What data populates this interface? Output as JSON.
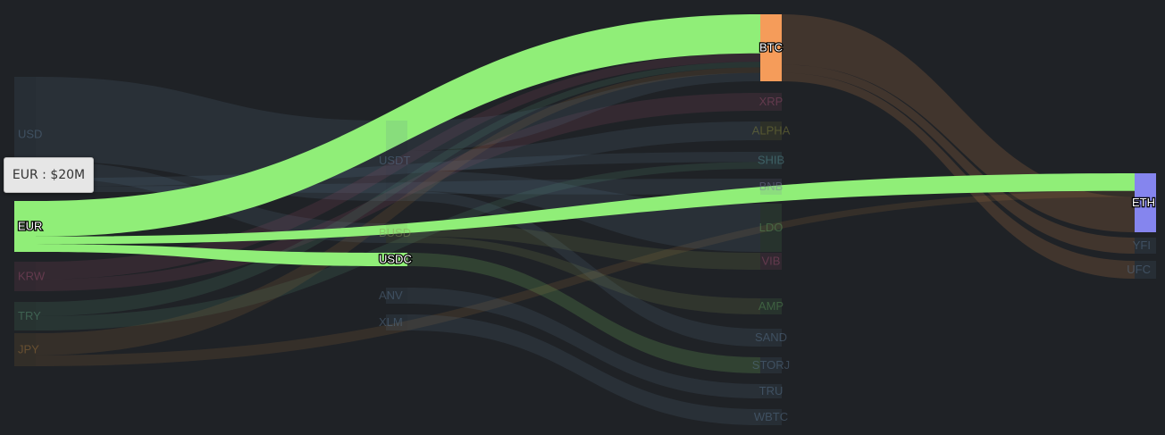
{
  "chart_data": {
    "type": "sankey",
    "highlighted_node": "EUR",
    "nodes": [
      {
        "id": "USD",
        "column": 0,
        "color": "#5d7a96"
      },
      {
        "id": "EUR",
        "column": 0,
        "color": "#90ee78"
      },
      {
        "id": "KRW",
        "column": 0,
        "color": "#a05070"
      },
      {
        "id": "TRY",
        "column": 0,
        "color": "#5a9a7a"
      },
      {
        "id": "JPY",
        "column": 0,
        "color": "#a8783c"
      },
      {
        "id": "USDT",
        "column": 1,
        "color": "#5d7a96"
      },
      {
        "id": "BUSD",
        "column": 1,
        "color": "#8a9a5a"
      },
      {
        "id": "USDC",
        "column": 1,
        "color": "#90ee78"
      },
      {
        "id": "ANV",
        "column": 1,
        "color": "#5d7a96"
      },
      {
        "id": "XLM",
        "column": 1,
        "color": "#5d7a96"
      },
      {
        "id": "BTC",
        "column": 2,
        "color": "#f59c5a"
      },
      {
        "id": "XRP",
        "column": 2,
        "color": "#a05070"
      },
      {
        "id": "ALPHA",
        "column": 2,
        "color": "#8a8a3c"
      },
      {
        "id": "SHIB",
        "column": 2,
        "color": "#5a9aa0"
      },
      {
        "id": "BNB",
        "column": 2,
        "color": "#7a7aa0"
      },
      {
        "id": "LDO",
        "column": 2,
        "color": "#5a9a5a"
      },
      {
        "id": "VIB",
        "column": 2,
        "color": "#a05070"
      },
      {
        "id": "AMP",
        "column": 2,
        "color": "#5a9a5a"
      },
      {
        "id": "SAND",
        "column": 2,
        "color": "#5d7a96"
      },
      {
        "id": "STORJ",
        "column": 2,
        "color": "#5d7a96"
      },
      {
        "id": "TRU",
        "column": 2,
        "color": "#5d7a96"
      },
      {
        "id": "WBTC",
        "column": 2,
        "color": "#5d7a96"
      },
      {
        "id": "ETH",
        "column": 3,
        "color": "#8585ee"
      },
      {
        "id": "YFI",
        "column": 3,
        "color": "#5d7a96"
      },
      {
        "id": "UFC",
        "column": 3,
        "color": "#5d7a96"
      }
    ],
    "links": [
      {
        "source": "EUR",
        "target": "BTC",
        "value": 14,
        "active": true
      },
      {
        "source": "EUR",
        "target": "ETH",
        "value": 3,
        "active": true
      },
      {
        "source": "EUR",
        "target": "USDC",
        "value": 3,
        "active": true
      },
      {
        "source": "USD",
        "target": "USDT",
        "value": 30,
        "active": false
      },
      {
        "source": "USD",
        "target": "BUSD",
        "value": 6,
        "active": false
      },
      {
        "source": "USD",
        "target": "SHIB",
        "value": 3,
        "active": false
      },
      {
        "source": "USD",
        "target": "BNB",
        "value": 2,
        "active": false
      },
      {
        "source": "KRW",
        "target": "BTC",
        "value": 3,
        "active": false
      },
      {
        "source": "KRW",
        "target": "XRP",
        "value": 2,
        "active": false
      },
      {
        "source": "TRY",
        "target": "BTC",
        "value": 2,
        "active": false
      },
      {
        "source": "TRY",
        "target": "SHIB",
        "value": 2,
        "active": false
      },
      {
        "source": "JPY",
        "target": "BTC",
        "value": 2,
        "active": false
      },
      {
        "source": "JPY",
        "target": "ETH",
        "value": 1,
        "active": false
      },
      {
        "source": "USDT",
        "target": "BTC",
        "value": 3,
        "active": false
      },
      {
        "source": "USDT",
        "target": "ALPHA",
        "value": 2,
        "active": false
      },
      {
        "source": "USDT",
        "target": "LDO",
        "value": 2,
        "active": false
      },
      {
        "source": "USDT",
        "target": "SAND",
        "value": 1,
        "active": false
      },
      {
        "source": "BUSD",
        "target": "VIB",
        "value": 2,
        "active": false
      },
      {
        "source": "BUSD",
        "target": "AMP",
        "value": 1,
        "active": false
      },
      {
        "source": "USDC",
        "target": "STORJ",
        "value": 1,
        "active": false
      },
      {
        "source": "ANV",
        "target": "TRU",
        "value": 1,
        "active": false
      },
      {
        "source": "XLM",
        "target": "WBTC",
        "value": 1,
        "active": false
      },
      {
        "source": "BTC",
        "target": "ETH",
        "value": 6,
        "active": false
      },
      {
        "source": "BTC",
        "target": "YFI",
        "value": 1,
        "active": false
      },
      {
        "source": "BTC",
        "target": "UFC",
        "value": 1,
        "active": false
      }
    ],
    "tooltip": "EUR : $20M"
  }
}
